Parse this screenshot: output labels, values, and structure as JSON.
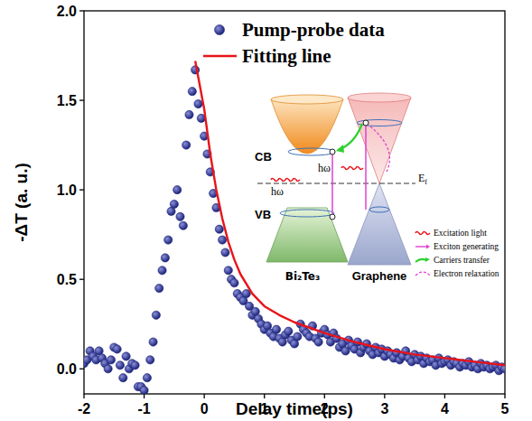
{
  "chart_data": {
    "type": "scatter",
    "x_label": "Delay time(ps)",
    "y_label": "-ΔT (a. u.)",
    "xlim": [
      -2,
      5
    ],
    "xticks": [
      -2,
      -1,
      0,
      1,
      2,
      3,
      4,
      5
    ],
    "ylim": [
      -0.14,
      2.0
    ],
    "yticks": [
      {
        "value": 0,
        "label": "0.0"
      },
      {
        "value": 0.5,
        "label": "0.5"
      },
      {
        "value": 1,
        "label": "1.0"
      },
      {
        "value": 1.5,
        "label": "1.5"
      },
      {
        "value": 2,
        "label": "2.0"
      }
    ],
    "legend": "top",
    "series": [
      {
        "name": "Pump-probe data",
        "type": "scatter",
        "marker": "circle",
        "color": "#1c237a",
        "x": [
          -2.0,
          -1.95,
          -1.9,
          -1.85,
          -1.8,
          -1.75,
          -1.7,
          -1.65,
          -1.6,
          -1.55,
          -1.5,
          -1.45,
          -1.4,
          -1.35,
          -1.3,
          -1.25,
          -1.2,
          -1.15,
          -1.1,
          -1.05,
          -1.0,
          -0.95,
          -0.9,
          -0.85,
          -0.8,
          -0.75,
          -0.7,
          -0.65,
          -0.6,
          -0.55,
          -0.5,
          -0.45,
          -0.4,
          -0.35,
          -0.3,
          -0.25,
          -0.2,
          -0.15,
          -0.1,
          -0.05,
          0.0,
          0.05,
          0.1,
          0.15,
          0.2,
          0.25,
          0.3,
          0.35,
          0.4,
          0.45,
          0.5,
          0.55,
          0.6,
          0.65,
          0.7,
          0.75,
          0.8,
          0.85,
          0.9,
          0.95,
          1.0,
          1.05,
          1.1,
          1.15,
          1.2,
          1.25,
          1.3,
          1.35,
          1.4,
          1.45,
          1.5,
          1.55,
          1.6,
          1.65,
          1.7,
          1.75,
          1.8,
          1.85,
          1.9,
          1.95,
          2.0,
          2.05,
          2.1,
          2.15,
          2.2,
          2.25,
          2.3,
          2.35,
          2.4,
          2.45,
          2.5,
          2.55,
          2.6,
          2.65,
          2.7,
          2.75,
          2.8,
          2.85,
          2.9,
          2.95,
          3.0,
          3.05,
          3.1,
          3.15,
          3.2,
          3.25,
          3.3,
          3.35,
          3.4,
          3.45,
          3.5,
          3.55,
          3.6,
          3.65,
          3.7,
          3.75,
          3.8,
          3.85,
          3.9,
          3.95,
          4.0,
          4.05,
          4.1,
          4.15,
          4.2,
          4.25,
          4.3,
          4.35,
          4.4,
          4.45,
          4.5,
          4.55,
          4.6,
          4.65,
          4.7,
          4.75,
          4.8,
          4.85,
          4.9,
          4.95,
          5.0
        ],
        "values": [
          0.03,
          0.05,
          0.1,
          0.07,
          0.05,
          0.1,
          0.06,
          0.03,
          0.0,
          0.05,
          0.12,
          0.11,
          0.02,
          -0.05,
          0.07,
          0.0,
          0.03,
          0.02,
          -0.1,
          -0.1,
          -0.12,
          -0.05,
          0.05,
          0.15,
          0.3,
          0.45,
          0.55,
          0.62,
          0.72,
          0.88,
          0.92,
          1.0,
          0.85,
          0.8,
          1.25,
          1.42,
          1.55,
          1.67,
          1.48,
          1.4,
          1.3,
          1.2,
          1.1,
          0.98,
          0.9,
          0.78,
          0.72,
          0.65,
          0.55,
          0.5,
          0.48,
          0.42,
          0.4,
          0.38,
          0.42,
          0.35,
          0.3,
          0.32,
          0.28,
          0.25,
          0.22,
          0.24,
          0.2,
          0.18,
          0.22,
          0.17,
          0.15,
          0.19,
          0.21,
          0.16,
          0.14,
          0.18,
          0.25,
          0.22,
          0.2,
          0.18,
          0.24,
          0.17,
          0.15,
          0.2,
          0.22,
          0.19,
          0.15,
          0.2,
          0.17,
          0.12,
          0.14,
          0.1,
          0.16,
          0.13,
          0.11,
          0.15,
          0.09,
          0.12,
          0.14,
          0.1,
          0.08,
          0.12,
          0.09,
          0.11,
          0.07,
          0.1,
          0.08,
          0.06,
          0.09,
          0.05,
          0.07,
          0.1,
          0.06,
          0.04,
          0.08,
          0.05,
          0.07,
          0.03,
          0.06,
          0.04,
          0.05,
          0.02,
          0.06,
          0.03,
          0.04,
          0.05,
          0.02,
          0.04,
          0.03,
          0.01,
          0.03,
          0.02,
          0.04,
          0.01,
          0.02,
          0.0,
          0.03,
          0.01,
          0.02,
          0.0,
          0.01,
          0.02,
          -0.01,
          0.01,
          0.0
        ]
      },
      {
        "name": "Fitting line",
        "type": "line",
        "line_style": "solid",
        "color": "#e8141a",
        "x": [
          -0.15,
          0.0,
          0.1,
          0.2,
          0.3,
          0.4,
          0.5,
          0.6,
          0.8,
          1.0,
          1.25,
          1.5,
          2.0,
          2.5,
          3.0,
          3.5,
          4.0,
          4.5,
          5.0
        ],
        "values": [
          1.72,
          1.45,
          1.2,
          1.0,
          0.84,
          0.71,
          0.61,
          0.53,
          0.42,
          0.35,
          0.3,
          0.26,
          0.2,
          0.15,
          0.11,
          0.08,
          0.06,
          0.04,
          0.02
        ]
      }
    ],
    "inset": {
      "bands": [
        "CB",
        "VB"
      ],
      "fermi": {
        "text": "E",
        "subscript": "f"
      },
      "photon": [
        "hω",
        "hω"
      ],
      "materials": [
        "Bi₂Te₃",
        "Graphene"
      ],
      "key_items": [
        "Excitation light",
        "Exciton generating",
        "Carriers transfer",
        "Electron relaxation"
      ]
    }
  }
}
